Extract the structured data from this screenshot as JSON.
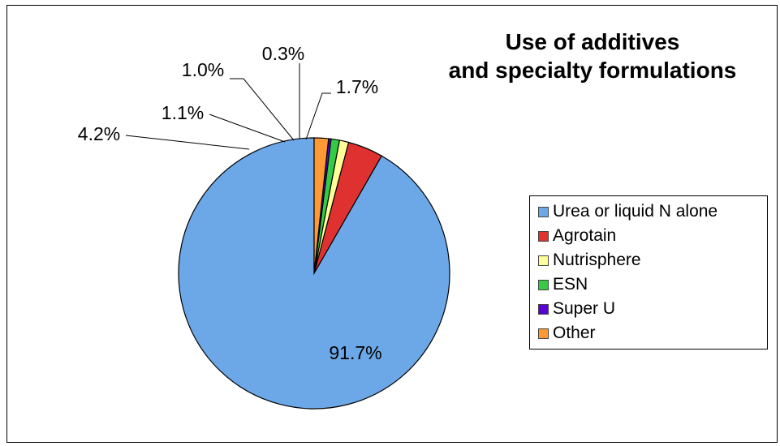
{
  "chart_data": {
    "type": "pie",
    "title": [
      "Use of additives",
      "and specialty formulations"
    ],
    "legend_position": "right",
    "slices": [
      {
        "label": "Urea or liquid N alone",
        "value": 91.7,
        "display": "91.7%",
        "color": "#6CA8E8"
      },
      {
        "label": "Agrotain",
        "value": 4.2,
        "display": "4.2%",
        "color": "#E03131"
      },
      {
        "label": "Nutrisphere",
        "value": 1.1,
        "display": "1.1%",
        "color": "#FFFF99"
      },
      {
        "label": "ESN",
        "value": 1.0,
        "display": "1.0%",
        "color": "#33CC44"
      },
      {
        "label": "Super U",
        "value": 0.3,
        "display": "0.3%",
        "color": "#5B00D6"
      },
      {
        "label": "Other",
        "value": 1.7,
        "display": "1.7%",
        "color": "#FF9933"
      }
    ]
  }
}
